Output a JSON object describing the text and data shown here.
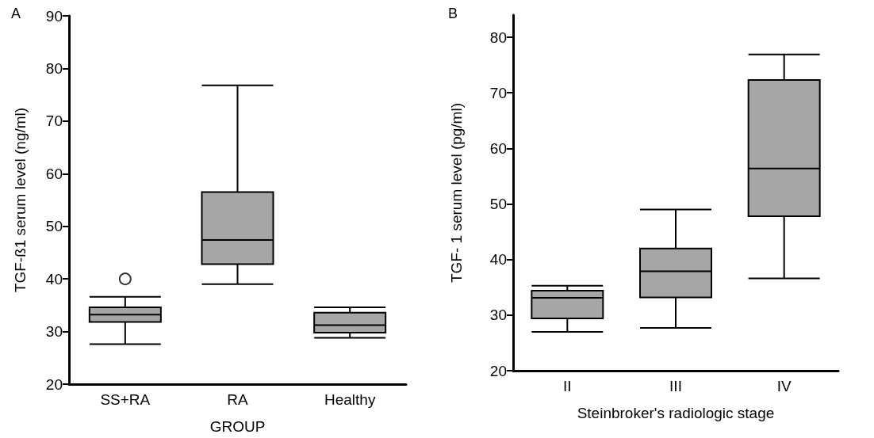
{
  "chart_data": [
    {
      "type": "box",
      "annotations": [
        "A"
      ],
      "ylabel": "TGF-ß1 serum level (ng/ml)",
      "xlabel": "GROUP",
      "categories": [
        "SS+RA",
        "RA",
        "Healthy"
      ],
      "color": "#a6a6a6",
      "boxes": [
        {
          "low": 27.6,
          "q1": 31.8,
          "median": 33.2,
          "q3": 34.6,
          "high": 36.6,
          "outliers": [
            40
          ]
        },
        {
          "low": 39,
          "q1": 42.8,
          "median": 47.4,
          "q3": 56.5,
          "high": 76.8
        },
        {
          "low": 28.8,
          "q1": 29.8,
          "median": 31.2,
          "q3": 33.6,
          "high": 34.6
        }
      ],
      "ylim": [
        20,
        90
      ],
      "yticks": [
        20,
        30,
        40,
        50,
        60,
        70,
        80,
        90
      ],
      "grid": false
    },
    {
      "type": "box",
      "annotations": [
        "B"
      ],
      "ylabel": "TGF- 1 serum level (pg/ml)",
      "xlabel": "Steinbroker's radiologic stage",
      "categories": [
        "II",
        "III",
        "IV"
      ],
      "color": "#a6a6a6",
      "boxes": [
        {
          "low": 27,
          "q1": 29.4,
          "median": 33.1,
          "q3": 34.4,
          "high": 35.3
        },
        {
          "low": 27.7,
          "q1": 33.2,
          "median": 37.9,
          "q3": 42,
          "high": 49
        },
        {
          "low": 36.6,
          "q1": 47.8,
          "median": 56.4,
          "q3": 72.3,
          "high": 76.9
        }
      ],
      "ylim": [
        20,
        84
      ],
      "yticks": [
        20,
        30,
        40,
        50,
        60,
        70,
        80
      ],
      "grid": false
    }
  ]
}
